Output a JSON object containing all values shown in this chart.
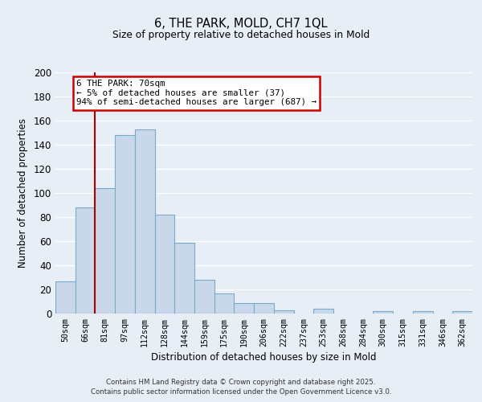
{
  "title1": "6, THE PARK, MOLD, CH7 1QL",
  "title2": "Size of property relative to detached houses in Mold",
  "xlabel": "Distribution of detached houses by size in Mold",
  "ylabel": "Number of detached properties",
  "bar_labels": [
    "50sqm",
    "66sqm",
    "81sqm",
    "97sqm",
    "112sqm",
    "128sqm",
    "144sqm",
    "159sqm",
    "175sqm",
    "190sqm",
    "206sqm",
    "222sqm",
    "237sqm",
    "253sqm",
    "268sqm",
    "284sqm",
    "300sqm",
    "315sqm",
    "331sqm",
    "346sqm",
    "362sqm"
  ],
  "bar_values": [
    27,
    88,
    104,
    148,
    153,
    82,
    59,
    28,
    17,
    9,
    9,
    3,
    0,
    4,
    0,
    0,
    2,
    0,
    2,
    0,
    2
  ],
  "bar_color": "#c8d8ea",
  "bar_edge_color": "#7aaac8",
  "vline_x": 1.5,
  "vline_color": "#aa0000",
  "annotation_title": "6 THE PARK: 70sqm",
  "annotation_line1": "← 5% of detached houses are smaller (37)",
  "annotation_line2": "94% of semi-detached houses are larger (687) →",
  "annotation_box_color": "#ffffff",
  "annotation_box_edge": "#cc0000",
  "ylim": [
    0,
    200
  ],
  "yticks": [
    0,
    20,
    40,
    60,
    80,
    100,
    120,
    140,
    160,
    180,
    200
  ],
  "background_color": "#e8eef5",
  "footer1": "Contains HM Land Registry data © Crown copyright and database right 2025.",
  "footer2": "Contains public sector information licensed under the Open Government Licence v3.0."
}
